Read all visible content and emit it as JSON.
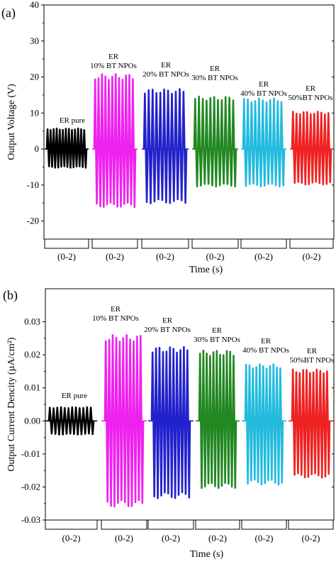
{
  "chart_data": [
    {
      "type": "line",
      "panel_label": "(a)",
      "ylabel": "Output Voltage (V)",
      "xlabel": "Time (s)",
      "ylim": [
        -25,
        40
      ],
      "yticks": [
        -20,
        -10,
        0,
        10,
        20,
        30,
        40
      ],
      "grid": false,
      "x_segment_labels": [
        "(0-2)",
        "(0-2)",
        "(0-2)",
        "(0-2)",
        "(0-2)",
        "(0-2)"
      ],
      "series": [
        {
          "name": "ER pure",
          "label_lines": [
            "ER pure"
          ],
          "color": "#000000",
          "peak": 5.5,
          "trough": -5,
          "cycles": 13
        },
        {
          "name": "ER 10% BT NPOs",
          "label_lines": [
            "ER",
            "10% BT NPOs"
          ],
          "color": "#ee22ee",
          "peak": 20,
          "trough": -15.5,
          "cycles": 12
        },
        {
          "name": "20% BT NPOs",
          "label_lines": [
            "ER",
            "20% BT NPOs"
          ],
          "color": "#2222cc",
          "peak": 16,
          "trough": -14.5,
          "cycles": 11
        },
        {
          "name": "ER 30% BT NPOs",
          "label_lines": [
            "ER",
            "30% BT NPOs"
          ],
          "color": "#228822",
          "peak": 14,
          "trough": -10,
          "cycles": 11
        },
        {
          "name": "ER 40% BT NPOs",
          "label_lines": [
            "ER",
            "40% BT NPOs"
          ],
          "color": "#22bbdd",
          "peak": 13.5,
          "trough": -10,
          "cycles": 11
        },
        {
          "name": "ER 50%BT NPOs",
          "label_lines": [
            "ER",
            "50%BT NPOs"
          ],
          "color": "#ee2222",
          "peak": 10,
          "trough": -9.5,
          "cycles": 11
        }
      ]
    },
    {
      "type": "line",
      "panel_label": "(b)",
      "ylabel": "Output Current Dencity (µA/cm²)",
      "xlabel": "Time (s)",
      "ylim": [
        -0.03,
        0.04
      ],
      "yticks": [
        -0.03,
        -0.02,
        -0.01,
        0.0,
        0.01,
        0.02,
        0.03
      ],
      "ytick_labels": [
        "-0.03",
        "-0.02",
        "-0.01",
        "0.00",
        "0.01",
        "0.02",
        "0.03"
      ],
      "grid": false,
      "x_segment_labels": [
        "(0-2)",
        "(0-2)",
        "(0-2)",
        "(0-2)",
        "(0-2)",
        "(0-2)"
      ],
      "series": [
        {
          "name": "ER pure",
          "label_lines": [
            "ER pure"
          ],
          "color": "#000000",
          "peak": 0.004,
          "trough": -0.004,
          "cycles": 12
        },
        {
          "name": "ER 10% BT NPOs",
          "label_lines": [
            "ER",
            "10% BT NPOs"
          ],
          "color": "#ee22ee",
          "peak": 0.025,
          "trough": -0.025,
          "cycles": 11
        },
        {
          "name": "ER 20% BT NPOs",
          "label_lines": [
            "ER",
            "20% BT NPOs"
          ],
          "color": "#2222cc",
          "peak": 0.0215,
          "trough": -0.0225,
          "cycles": 11
        },
        {
          "name": "ER 30% BT NPOs",
          "label_lines": [
            "ER",
            "30% BT NPOs"
          ],
          "color": "#228822",
          "peak": 0.0205,
          "trough": -0.0195,
          "cycles": 11
        },
        {
          "name": "ER 40% BT NPOs",
          "label_lines": [
            "ER",
            "40% BT NPOs"
          ],
          "color": "#22bbdd",
          "peak": 0.0165,
          "trough": -0.0185,
          "cycles": 11
        },
        {
          "name": "ER 50%BT NPOs",
          "label_lines": [
            "ER",
            "50%BT NPOs"
          ],
          "color": "#ee2222",
          "peak": 0.015,
          "trough": -0.0165,
          "cycles": 11
        }
      ]
    }
  ]
}
